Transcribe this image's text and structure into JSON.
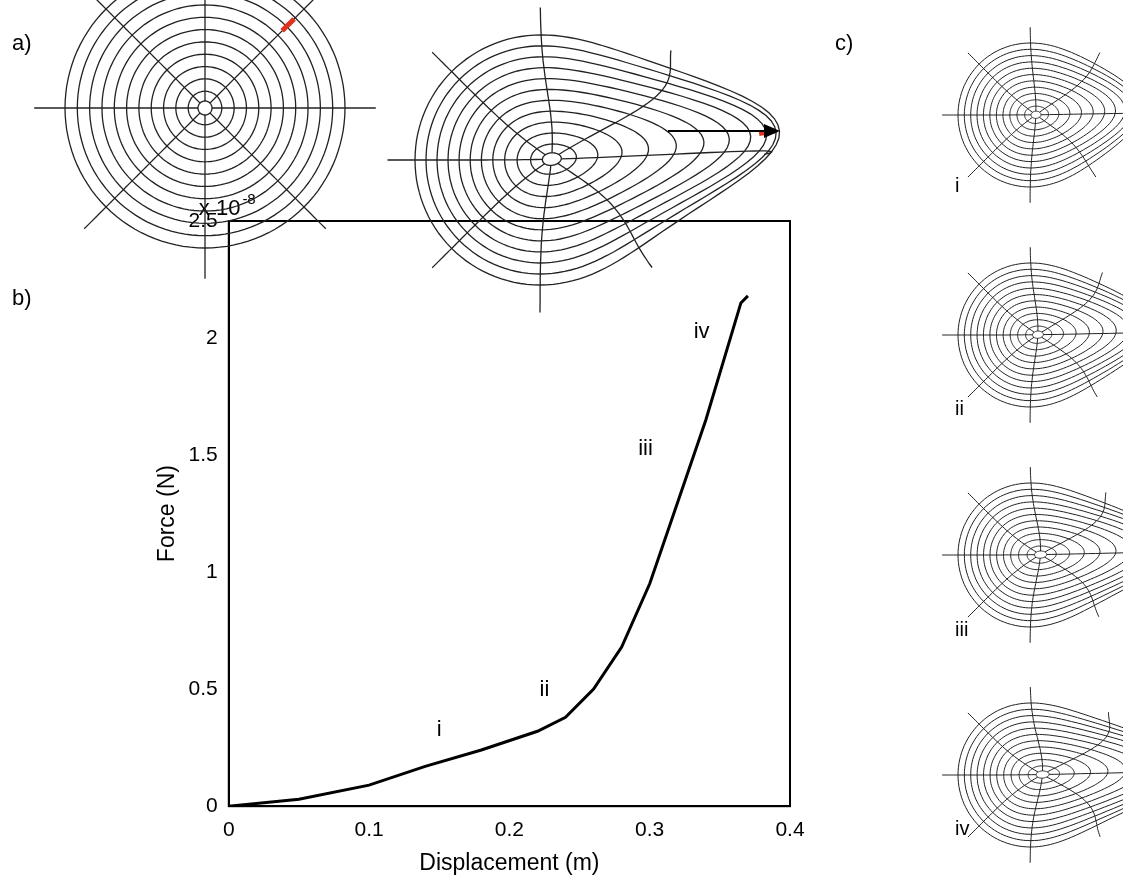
{
  "chart_data": {
    "type": "line",
    "panel_label": "b)",
    "x_label": "Displacement (m)",
    "y_label": "Force (N)",
    "y_multiplier": {
      "base": "x 10",
      "exponent": "-8"
    },
    "x": [
      0,
      0.05,
      0.1,
      0.14,
      0.18,
      0.22,
      0.24,
      0.26,
      0.28,
      0.3,
      0.32,
      0.34,
      0.36,
      0.365,
      0.37
    ],
    "values": [
      0,
      0.03,
      0.09,
      0.17,
      0.24,
      0.32,
      0.38,
      0.5,
      0.68,
      0.95,
      1.3,
      1.65,
      2.05,
      2.15,
      2.18
    ],
    "color": "#000000",
    "xlim": [
      0,
      0.4
    ],
    "xticks": [
      0,
      0.1,
      0.2,
      0.3,
      0.4
    ],
    "ylim": [
      0,
      2.5
    ],
    "yticks": [
      0,
      0.5,
      1,
      1.5,
      2,
      2.5
    ],
    "grid": false,
    "annotations": [
      {
        "text": "i",
        "x": 0.15,
        "y": 0.3
      },
      {
        "text": "ii",
        "x": 0.225,
        "y": 0.47
      },
      {
        "text": "iii",
        "x": 0.297,
        "y": 1.5
      },
      {
        "text": "iv",
        "x": 0.337,
        "y": 2.0
      }
    ]
  },
  "panels": {
    "a": {
      "label": "a)"
    },
    "c": {
      "label": "c)",
      "items": [
        "i",
        "ii",
        "iii",
        "iv"
      ]
    }
  }
}
